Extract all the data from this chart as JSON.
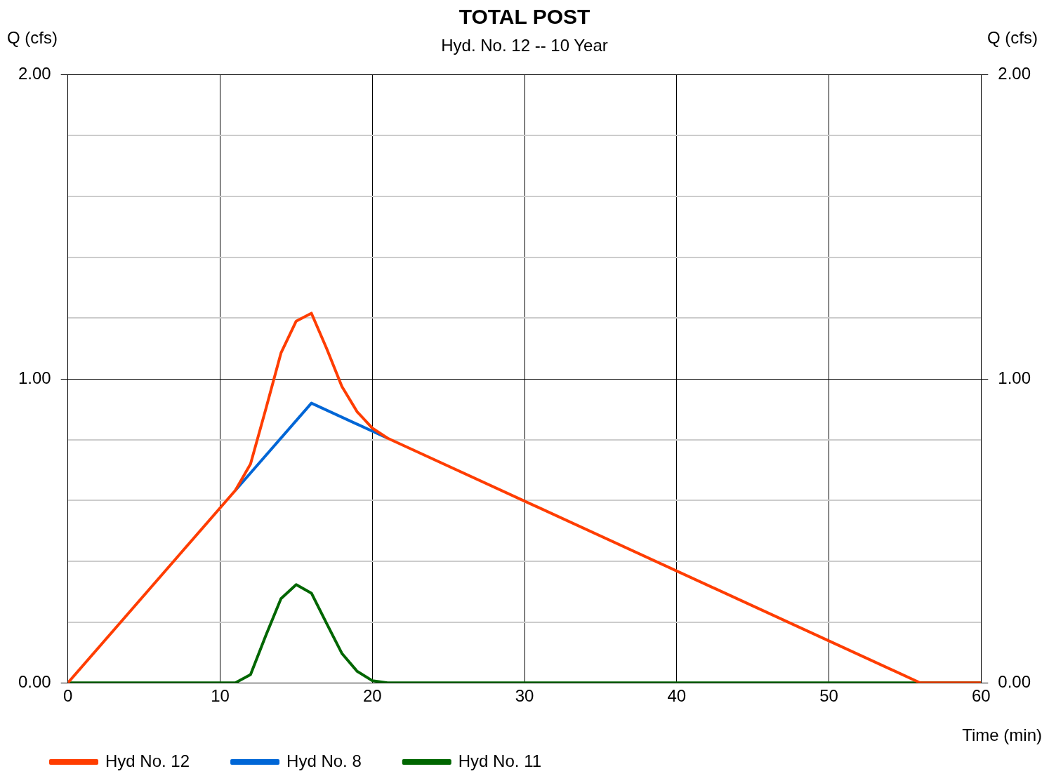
{
  "chart_data": {
    "type": "line",
    "title": "TOTAL POST",
    "subtitle": "Hyd. No. 12 -- 10 Year",
    "xlabel": "Time (min)",
    "ylabel": "Q (cfs)",
    "y2label": "Q (cfs)",
    "xlim": [
      0,
      60
    ],
    "xticks": [
      0,
      10,
      20,
      30,
      40,
      50,
      60
    ],
    "ylim": [
      0,
      2
    ],
    "yticks": [
      {
        "value": 0,
        "label": "0.00"
      },
      {
        "value": 0.2,
        "label": null
      },
      {
        "value": 0.4,
        "label": null
      },
      {
        "value": 0.6,
        "label": null
      },
      {
        "value": 0.8,
        "label": null
      },
      {
        "value": 1,
        "label": "1.00"
      },
      {
        "value": 1.2,
        "label": null
      },
      {
        "value": 1.4,
        "label": null
      },
      {
        "value": 1.6,
        "label": null
      },
      {
        "value": 1.8,
        "label": null
      },
      {
        "value": 2,
        "label": "2.00"
      }
    ],
    "y2lim": [
      0,
      2
    ],
    "y2ticks": [
      {
        "value": 0,
        "label": "0.00"
      },
      {
        "value": 1,
        "label": "1.00"
      },
      {
        "value": 2,
        "label": "2.00"
      }
    ],
    "grid": true,
    "legend": "bottom left",
    "marker": "none",
    "line_style": "solid",
    "series": [
      {
        "name": "Hyd No. 12",
        "color": "#ff3d00",
        "x": [
          0,
          11,
          12,
          13,
          14,
          15,
          16,
          17,
          18,
          19,
          20,
          21,
          56,
          60
        ],
        "values": [
          0,
          0.633,
          0.72,
          0.9,
          1.085,
          1.19,
          1.216,
          1.1,
          0.975,
          0.892,
          0.838,
          0.805,
          0,
          0
        ]
      },
      {
        "name": "Hyd No. 8",
        "color": "#0066d6",
        "x": [
          11,
          16,
          21
        ],
        "values": [
          0.633,
          0.92,
          0.805
        ]
      },
      {
        "name": "Hyd No. 11",
        "color": "#006600",
        "x": [
          0,
          11,
          12,
          13,
          14,
          15,
          16,
          17,
          18,
          19,
          20,
          21,
          60
        ],
        "values": [
          0,
          0,
          0.027,
          0.155,
          0.277,
          0.323,
          0.295,
          0.195,
          0.097,
          0.038,
          0.007,
          0,
          0
        ]
      }
    ]
  }
}
